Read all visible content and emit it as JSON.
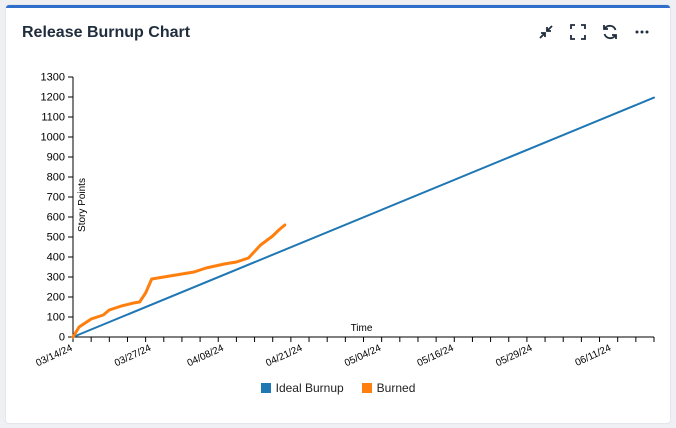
{
  "card": {
    "title": "Release Burnup Chart"
  },
  "toolbar": [
    {
      "name": "collapse-icon"
    },
    {
      "name": "fullscreen-icon"
    },
    {
      "name": "refresh-icon"
    },
    {
      "name": "more-icon"
    }
  ],
  "colors": {
    "ideal": "#1f77b4",
    "burned": "#ff7f0e"
  },
  "chart_data": {
    "type": "line",
    "title": "Release Burnup Chart",
    "xlabel": "Time",
    "ylabel": "Story Points",
    "ylim": [
      0,
      1300
    ],
    "yticks": [
      0,
      100,
      200,
      300,
      400,
      500,
      600,
      700,
      800,
      900,
      1000,
      1100,
      1200,
      1300
    ],
    "xlim": [
      "2024-03-14",
      "2024-06-18"
    ],
    "xtick_labels": [
      "03/14/24",
      "03/27/24",
      "04/08/24",
      "04/21/24",
      "05/04/24",
      "05/16/24",
      "05/29/24",
      "06/11/24"
    ],
    "legend_position": "bottom",
    "grid": false,
    "series": [
      {
        "name": "Ideal Burnup",
        "color": "#1f77b4",
        "points": [
          [
            "2024-03-14",
            0
          ],
          [
            "2024-06-18",
            1197
          ]
        ]
      },
      {
        "name": "Burned",
        "color": "#ff7f0e",
        "points": [
          [
            "2024-03-14",
            0
          ],
          [
            "2024-03-15",
            50
          ],
          [
            "2024-03-17",
            90
          ],
          [
            "2024-03-19",
            110
          ],
          [
            "2024-03-20",
            135
          ],
          [
            "2024-03-22",
            155
          ],
          [
            "2024-03-24",
            170
          ],
          [
            "2024-03-25",
            175
          ],
          [
            "2024-03-26",
            220
          ],
          [
            "2024-03-27",
            290
          ],
          [
            "2024-03-30",
            305
          ],
          [
            "2024-04-03",
            325
          ],
          [
            "2024-04-05",
            345
          ],
          [
            "2024-04-08",
            365
          ],
          [
            "2024-04-10",
            375
          ],
          [
            "2024-04-12",
            395
          ],
          [
            "2024-04-14",
            460
          ],
          [
            "2024-04-16",
            505
          ],
          [
            "2024-04-17",
            535
          ],
          [
            "2024-04-18",
            560
          ]
        ]
      }
    ]
  }
}
